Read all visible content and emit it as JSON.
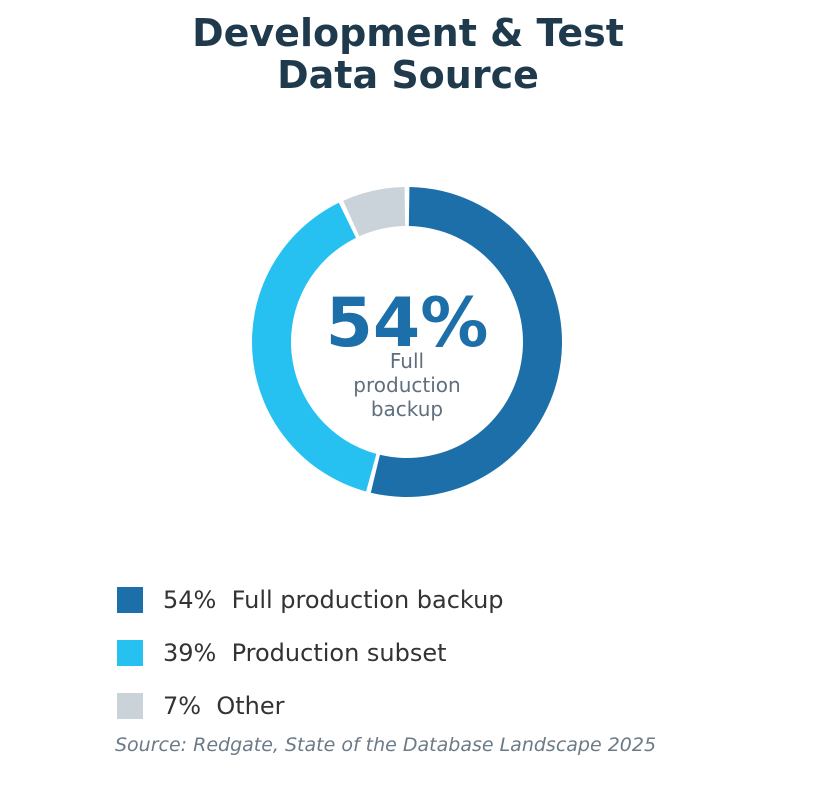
{
  "title": {
    "line1": "Development & Test",
    "line2": "Data Source"
  },
  "chart_data": {
    "type": "pie",
    "style": "donut",
    "categories": [
      "Full production backup",
      "Production subset",
      "Other"
    ],
    "values": [
      54,
      39,
      7
    ],
    "unit": "%",
    "colors": [
      "#1c6fa8",
      "#27c1f1",
      "#cbd3da"
    ],
    "start": "top, clockwise",
    "legend_position": "bottom-left"
  },
  "center": {
    "value": "54%",
    "label_lines": [
      "Full",
      "production",
      "backup"
    ]
  },
  "legend": [
    {
      "pct": "54%",
      "label": "Full production backup",
      "color": "#1c6fa8"
    },
    {
      "pct": "39%",
      "label": "Production subset",
      "color": "#27c1f1"
    },
    {
      "pct": "7%",
      "label": "Other",
      "color": "#cbd3da"
    }
  ],
  "source": "Source: Redgate, State of the Database Landscape 2025"
}
